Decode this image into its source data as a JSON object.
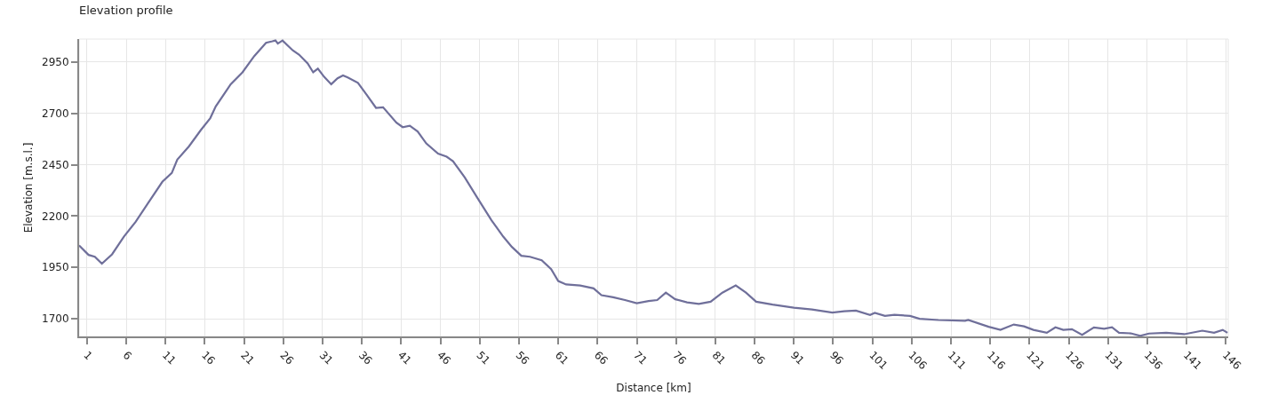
{
  "chart_data": {
    "type": "line",
    "title": "Elevation profile",
    "xlabel": "Distance [km]",
    "ylabel": "Elevation [m.s.l.]",
    "xlim": [
      0,
      146.3
    ],
    "ylim": [
      1614,
      3062
    ],
    "xticks": [
      1,
      6,
      11,
      16,
      21,
      26,
      31,
      36,
      41,
      46,
      51,
      56,
      61,
      66,
      71,
      76,
      81,
      86,
      91,
      96,
      101,
      106,
      111,
      116,
      121,
      126,
      131,
      136,
      141,
      146
    ],
    "yticks": [
      1700,
      1950,
      2200,
      2450,
      2700,
      2950
    ],
    "grid": true,
    "marker": "none",
    "line_style": "solid",
    "series": [
      {
        "color": "#6f6f9a",
        "x": [
          0,
          1.2,
          2.0,
          2.9,
          4.2,
          5.7,
          7.2,
          8.7,
          10.6,
          11.8,
          12.5,
          14.0,
          15.5,
          16.7,
          17.4,
          19.3,
          20.8,
          22.3,
          23.8,
          24.6,
          25.0,
          25.3,
          25.9,
          27.2,
          28.0,
          29.1,
          29.8,
          30.4,
          31.2,
          32.1,
          32.9,
          33.6,
          34.2,
          35.5,
          36.6,
          37.8,
          38.7,
          40.4,
          41.2,
          42.1,
          43.1,
          44.2,
          45.7,
          46.8,
          47.6,
          49.1,
          50.6,
          52.5,
          54.0,
          55.1,
          56.3,
          57.4,
          58.9,
          60.1,
          61.0,
          62.0,
          63.8,
          65.5,
          66.5,
          68.0,
          69.5,
          71.0,
          72.5,
          73.6,
          74.7,
          75.9,
          77.4,
          78.9,
          80.4,
          81.9,
          83.6,
          84.9,
          86.2,
          88.3,
          91.0,
          93.3,
          95.9,
          97.4,
          98.9,
          100.7,
          101.3,
          102.6,
          103.8,
          105.8,
          107.0,
          109.4,
          112.8,
          113.2,
          115.8,
          117.3,
          119.0,
          120.3,
          121.5,
          123.2,
          124.3,
          125.3,
          126.4,
          127.7,
          129.2,
          130.5,
          131.5,
          132.4,
          133.9,
          135.1,
          136.2,
          138.4,
          140.7,
          143.0,
          144.5,
          145.6,
          146.2
        ],
        "values": [
          2057,
          2011,
          2002,
          1968,
          2014,
          2100,
          2172,
          2259,
          2367,
          2410,
          2475,
          2540,
          2619,
          2677,
          2734,
          2842,
          2900,
          2979,
          3044,
          3051,
          3055,
          3040,
          3055,
          3007,
          2986,
          2943,
          2900,
          2918,
          2878,
          2842,
          2871,
          2885,
          2875,
          2849,
          2791,
          2727,
          2730,
          2655,
          2633,
          2640,
          2612,
          2554,
          2504,
          2489,
          2467,
          2388,
          2295,
          2180,
          2100,
          2050,
          2007,
          2002,
          1985,
          1942,
          1884,
          1867,
          1862,
          1848,
          1815,
          1805,
          1791,
          1776,
          1786,
          1791,
          1827,
          1795,
          1780,
          1772,
          1783,
          1827,
          1862,
          1827,
          1783,
          1769,
          1754,
          1745,
          1730,
          1737,
          1740,
          1719,
          1729,
          1714,
          1719,
          1714,
          1700,
          1694,
          1690,
          1694,
          1661,
          1646,
          1672,
          1663,
          1646,
          1632,
          1658,
          1646,
          1649,
          1622,
          1658,
          1651,
          1659,
          1632,
          1629,
          1617,
          1628,
          1632,
          1625,
          1642,
          1632,
          1646,
          1632
        ]
      }
    ]
  }
}
